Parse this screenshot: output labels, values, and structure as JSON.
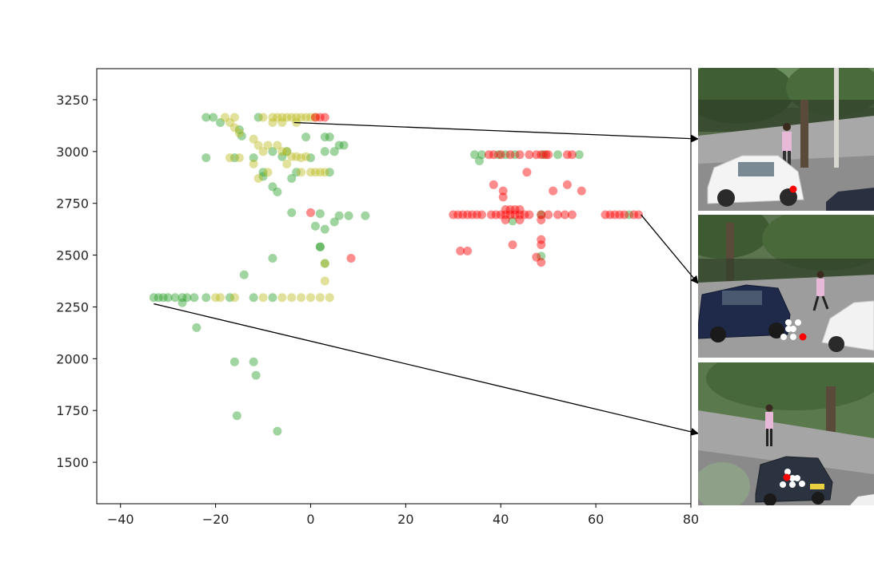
{
  "chart_data": {
    "type": "scatter",
    "title": "",
    "xlabel": "",
    "ylabel": "",
    "xlim": [
      -45,
      80
    ],
    "ylim": [
      1300,
      3400
    ],
    "x_ticks": [
      -40,
      -20,
      0,
      20,
      40,
      60,
      80
    ],
    "x_tick_labels": [
      "−40",
      "−20",
      "0",
      "20",
      "40",
      "60",
      "80"
    ],
    "y_ticks": [
      1500,
      1750,
      2000,
      2250,
      2500,
      2750,
      3000,
      3250
    ],
    "y_tick_labels": [
      "1500",
      "1750",
      "2000",
      "2250",
      "2500",
      "2750",
      "3000",
      "3250"
    ],
    "grid": false,
    "legend": "none",
    "marker_alpha": 0.45,
    "series": [
      {
        "color": "#2ca02c",
        "points": [
          [
            -22,
            3165
          ],
          [
            -20.5,
            3165
          ],
          [
            -19,
            3140
          ],
          [
            -15,
            3105
          ],
          [
            -14.5,
            3075
          ],
          [
            -11,
            3165
          ],
          [
            -8,
            3000
          ],
          [
            -6,
            2975
          ],
          [
            -5,
            3000
          ],
          [
            -22,
            2970
          ],
          [
            -16,
            2970
          ],
          [
            -12,
            2970
          ],
          [
            -10,
            2900
          ],
          [
            -10,
            2880
          ],
          [
            -8,
            2830
          ],
          [
            -7,
            2805
          ],
          [
            -4,
            2870
          ],
          [
            -3,
            2900
          ],
          [
            -1,
            3070
          ],
          [
            0,
            2970
          ],
          [
            3,
            3070
          ],
          [
            3,
            3000
          ],
          [
            4,
            3070
          ],
          [
            4,
            2900
          ],
          [
            5,
            3000
          ],
          [
            6,
            3030
          ],
          [
            7,
            3030
          ],
          [
            -4,
            2705
          ],
          [
            2,
            2700
          ],
          [
            3,
            2625
          ],
          [
            5,
            2660
          ],
          [
            6,
            2690
          ],
          [
            8,
            2690
          ],
          [
            11.5,
            2690
          ],
          [
            1,
            2640
          ],
          [
            -8,
            2485
          ],
          [
            2,
            2540
          ],
          [
            3,
            2460
          ],
          [
            2,
            2540
          ],
          [
            -14,
            2405
          ],
          [
            -33,
            2295
          ],
          [
            -32,
            2295
          ],
          [
            -31,
            2295
          ],
          [
            -30,
            2295
          ],
          [
            -28.5,
            2295
          ],
          [
            -27,
            2295
          ],
          [
            -26,
            2295
          ],
          [
            -24.5,
            2295
          ],
          [
            -22,
            2295
          ],
          [
            -17,
            2295
          ],
          [
            -12,
            2295
          ],
          [
            -8,
            2295
          ],
          [
            -27,
            2270
          ],
          [
            -24,
            2150
          ],
          [
            -16,
            1985
          ],
          [
            -12,
            1985
          ],
          [
            -11.5,
            1920
          ],
          [
            -15.5,
            1725
          ],
          [
            -7,
            1650
          ],
          [
            34.5,
            2985
          ],
          [
            35.5,
            2955
          ],
          [
            36,
            2985
          ],
          [
            39.5,
            2985
          ],
          [
            41,
            2985
          ],
          [
            43,
            2985
          ],
          [
            49,
            2985
          ],
          [
            52,
            2985
          ],
          [
            56.5,
            2985
          ],
          [
            42.5,
            2665
          ],
          [
            48.5,
            2695
          ],
          [
            48.5,
            2495
          ],
          [
            67,
            2695
          ]
        ]
      },
      {
        "color": "#bcbd22",
        "points": [
          [
            -18,
            3165
          ],
          [
            -17,
            3140
          ],
          [
            -16,
            3165
          ],
          [
            -16,
            3115
          ],
          [
            -15,
            3090
          ],
          [
            -12,
            3060
          ],
          [
            -11,
            3030
          ],
          [
            -10,
            3000
          ],
          [
            -9,
            3030
          ],
          [
            -7,
            3030
          ],
          [
            -6,
            3000
          ],
          [
            -5,
            3000
          ],
          [
            -4,
            2975
          ],
          [
            -3,
            2975
          ],
          [
            -2,
            2970
          ],
          [
            -1,
            2975
          ],
          [
            -17,
            2970
          ],
          [
            -15,
            2970
          ],
          [
            -12,
            2940
          ],
          [
            -11,
            2870
          ],
          [
            -9,
            2900
          ],
          [
            -5,
            2940
          ],
          [
            -2,
            2900
          ],
          [
            0,
            2900
          ],
          [
            1,
            2900
          ],
          [
            2,
            2900
          ],
          [
            3,
            2900
          ],
          [
            -10,
            3165
          ],
          [
            -8,
            3165
          ],
          [
            -7,
            3165
          ],
          [
            -6,
            3165
          ],
          [
            -5,
            3165
          ],
          [
            -4,
            3165
          ],
          [
            -3,
            3165
          ],
          [
            -2,
            3165
          ],
          [
            -1,
            3165
          ],
          [
            0,
            3165
          ],
          [
            1,
            3165
          ],
          [
            -8,
            3140
          ],
          [
            -6,
            3140
          ],
          [
            -3,
            3140
          ],
          [
            3,
            2460
          ],
          [
            3,
            2375
          ],
          [
            -20,
            2295
          ],
          [
            -19,
            2295
          ],
          [
            -16,
            2295
          ],
          [
            -10,
            2295
          ],
          [
            -6,
            2295
          ],
          [
            -4,
            2295
          ],
          [
            -2,
            2295
          ],
          [
            0,
            2295
          ],
          [
            2,
            2295
          ],
          [
            4,
            2295
          ]
        ]
      },
      {
        "color": "#ff0000",
        "points": [
          [
            1,
            3165
          ],
          [
            2,
            3165
          ],
          [
            3,
            3165
          ],
          [
            37.5,
            2985
          ],
          [
            38.5,
            2985
          ],
          [
            40,
            2985
          ],
          [
            42,
            2985
          ],
          [
            44,
            2985
          ],
          [
            46,
            2985
          ],
          [
            47.5,
            2985
          ],
          [
            48.5,
            2985
          ],
          [
            49.5,
            2985
          ],
          [
            50,
            2985
          ],
          [
            54,
            2985
          ],
          [
            55,
            2985
          ],
          [
            45.5,
            2900
          ],
          [
            38.5,
            2840
          ],
          [
            40.5,
            2810
          ],
          [
            40.5,
            2780
          ],
          [
            51,
            2810
          ],
          [
            54,
            2840
          ],
          [
            57,
            2810
          ],
          [
            30,
            2695
          ],
          [
            31,
            2695
          ],
          [
            32,
            2695
          ],
          [
            33,
            2695
          ],
          [
            34,
            2695
          ],
          [
            35,
            2695
          ],
          [
            36,
            2695
          ],
          [
            38,
            2695
          ],
          [
            39,
            2695
          ],
          [
            40,
            2695
          ],
          [
            41,
            2695
          ],
          [
            42,
            2695
          ],
          [
            43,
            2695
          ],
          [
            44,
            2695
          ],
          [
            45,
            2695
          ],
          [
            46,
            2695
          ],
          [
            48.5,
            2695
          ],
          [
            50,
            2695
          ],
          [
            52,
            2695
          ],
          [
            53.5,
            2695
          ],
          [
            55,
            2695
          ],
          [
            62,
            2695
          ],
          [
            63,
            2695
          ],
          [
            64,
            2695
          ],
          [
            65,
            2695
          ],
          [
            66,
            2695
          ],
          [
            68,
            2695
          ],
          [
            69,
            2695
          ],
          [
            41,
            2720
          ],
          [
            42,
            2720
          ],
          [
            43,
            2720
          ],
          [
            44,
            2720
          ],
          [
            41,
            2670
          ],
          [
            44,
            2670
          ],
          [
            48.5,
            2670
          ],
          [
            31.5,
            2520
          ],
          [
            33,
            2520
          ],
          [
            42.5,
            2550
          ],
          [
            47.5,
            2490
          ],
          [
            48.5,
            2550
          ],
          [
            48.5,
            2575
          ],
          [
            48.5,
            2465
          ],
          [
            0,
            2705
          ],
          [
            8.5,
            2485
          ]
        ]
      }
    ],
    "arrows": [
      {
        "from": [
          -3.5,
          3140
        ],
        "to": "frame-1"
      },
      {
        "from": [
          69.5,
          2695
        ],
        "to": "frame-2"
      },
      {
        "from": [
          -33,
          2265
        ],
        "to": "frame-3"
      }
    ]
  },
  "frames": [
    {
      "name": "frame-1",
      "keypoint_color": "#ff0000"
    },
    {
      "name": "frame-2",
      "keypoint_color": "#ff0000",
      "other_keypoint_color": "#ffffff"
    },
    {
      "name": "frame-3",
      "keypoint_color": "#ff0000",
      "other_keypoint_color": "#ffffff"
    }
  ]
}
